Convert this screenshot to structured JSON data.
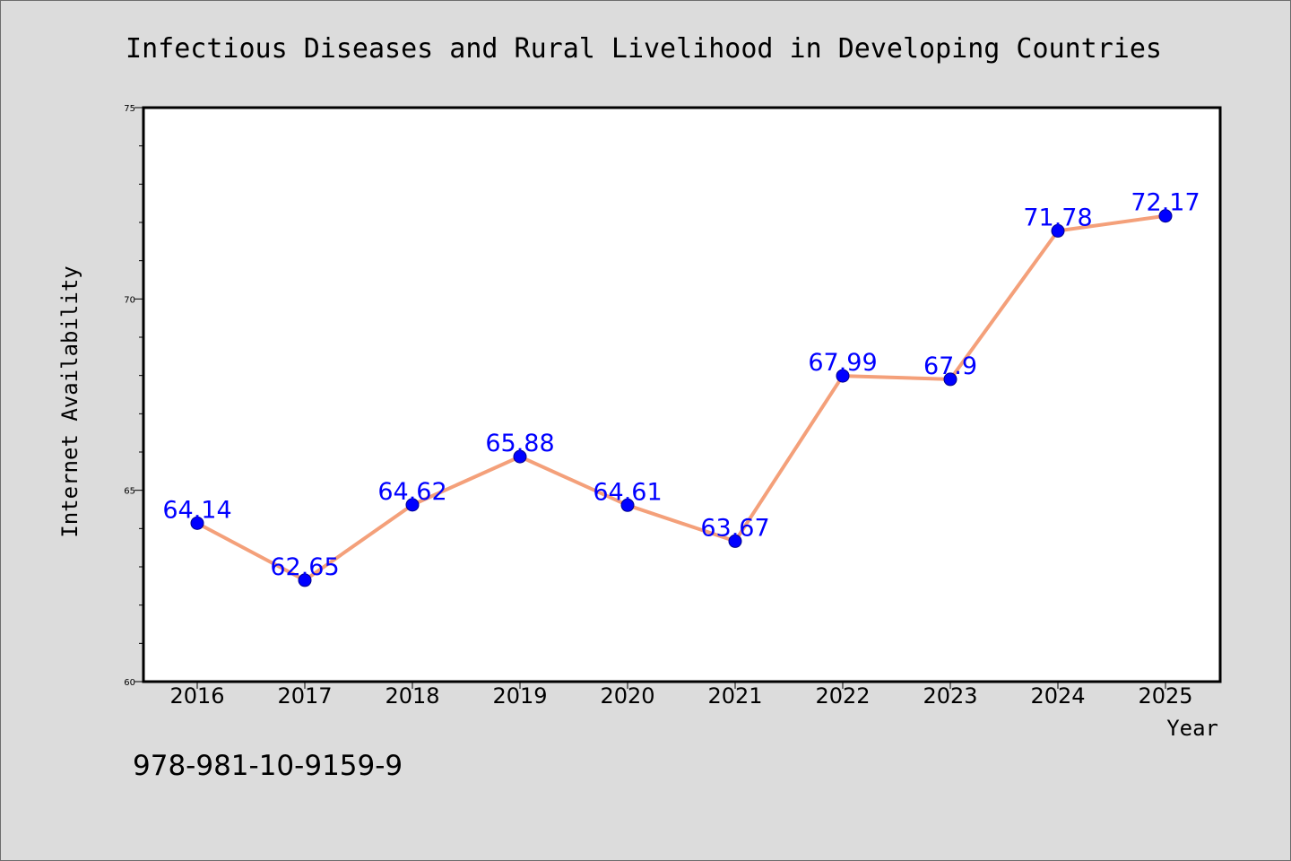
{
  "colors": {
    "background": "#dcdcdc",
    "plot_background": "#ffffff",
    "line": "#f4a07a",
    "marker": "#0000ff",
    "data_label": "#0000ff"
  },
  "footer_note": "978-981-10-9159-9",
  "chart_data": {
    "type": "line",
    "title": "Infectious Diseases and Rural Livelihood in Developing Countries",
    "xlabel": "Year",
    "ylabel": "Internet Availability",
    "categories": [
      "2016",
      "2017",
      "2018",
      "2019",
      "2020",
      "2021",
      "2022",
      "2023",
      "2024",
      "2025"
    ],
    "series": [
      {
        "values": [
          64.14,
          62.65,
          64.62,
          65.88,
          64.61,
          63.67,
          67.99,
          67.9,
          71.78,
          72.17
        ],
        "labels": [
          "64.14",
          "62.65",
          "64.62",
          "65.88",
          "64.61",
          "63.67",
          "67.99",
          "67.9",
          "71.78",
          "72.17"
        ]
      }
    ],
    "ylim": [
      60,
      75
    ],
    "yticks": [
      "60",
      "65",
      "70",
      "75"
    ],
    "grid": false,
    "legend": "none"
  }
}
